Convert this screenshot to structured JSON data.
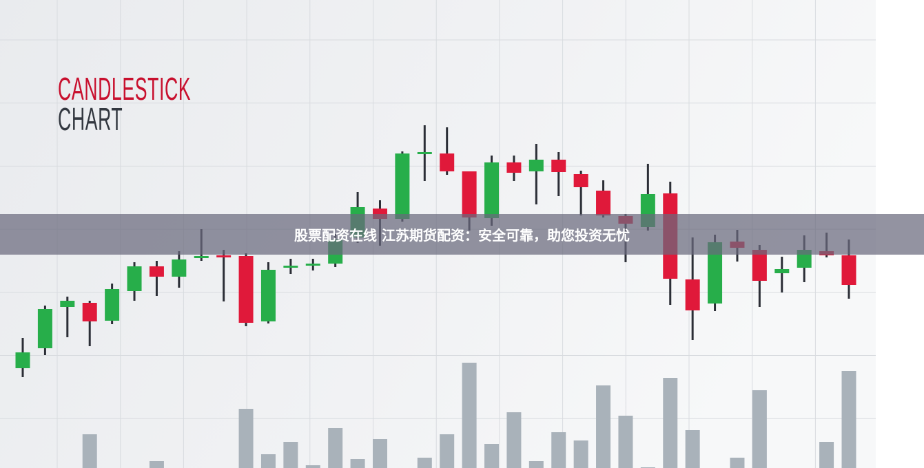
{
  "banner": {
    "text": "股票配资在线 江苏期货配资：安全可靠，助您投资无忧"
  },
  "chart_data": {
    "type": "candlestick",
    "title": [
      "CANDLESTICK",
      "CHART"
    ],
    "xlabel": "",
    "ylabel": "",
    "grid": true,
    "legend": "none",
    "colors": {
      "up": "#27ae4a",
      "down": "#e0193a",
      "wick": "#2b2e36",
      "volume": "#a9b2ba",
      "title_red": "#c8102e",
      "title_dark": "#333840"
    },
    "candles": [
      {
        "o": 65,
        "c": 88,
        "h": 109,
        "l": 52
      },
      {
        "o": 94,
        "c": 151,
        "h": 156,
        "l": 84
      },
      {
        "o": 154,
        "c": 163,
        "h": 169,
        "l": 110
      },
      {
        "o": 160,
        "c": 133,
        "h": 163,
        "l": 97
      },
      {
        "o": 134,
        "c": 180,
        "h": 188,
        "l": 129
      },
      {
        "o": 177,
        "c": 213,
        "h": 219,
        "l": 163
      },
      {
        "o": 213,
        "c": 198,
        "h": 221,
        "l": 170
      },
      {
        "o": 198,
        "c": 223,
        "h": 235,
        "l": 182
      },
      {
        "o": 226,
        "c": 228,
        "h": 267,
        "l": 221
      },
      {
        "o": 229,
        "c": 227,
        "h": 237,
        "l": 162
      },
      {
        "o": 228,
        "c": 131,
        "h": 232,
        "l": 126
      },
      {
        "o": 133,
        "c": 208,
        "h": 219,
        "l": 130
      },
      {
        "o": 212,
        "c": 214,
        "h": 224,
        "l": 202
      },
      {
        "o": 215,
        "c": 217,
        "h": 224,
        "l": 207
      },
      {
        "o": 217,
        "c": 252,
        "h": 260,
        "l": 212
      },
      {
        "o": 255,
        "c": 299,
        "h": 321,
        "l": 247
      },
      {
        "o": 297,
        "c": 282,
        "h": 309,
        "l": 243
      },
      {
        "o": 282,
        "c": 377,
        "h": 380,
        "l": 278
      },
      {
        "o": 376,
        "c": 379,
        "h": 418,
        "l": 337
      },
      {
        "o": 377,
        "c": 351,
        "h": 415,
        "l": 346
      },
      {
        "o": 351,
        "c": 284,
        "h": 351,
        "l": 265
      },
      {
        "o": 283,
        "c": 364,
        "h": 374,
        "l": 272
      },
      {
        "o": 364,
        "c": 349,
        "h": 374,
        "l": 337
      },
      {
        "o": 351,
        "c": 368,
        "h": 391,
        "l": 303
      },
      {
        "o": 368,
        "c": 350,
        "h": 379,
        "l": 315
      },
      {
        "o": 347,
        "c": 328,
        "h": 352,
        "l": 287
      },
      {
        "o": 323,
        "c": 287,
        "h": 338,
        "l": 284
      },
      {
        "o": 286,
        "c": 275,
        "h": 289,
        "l": 219
      },
      {
        "o": 270,
        "c": 318,
        "h": 362,
        "l": 265
      },
      {
        "o": 319,
        "c": 195,
        "h": 336,
        "l": 157
      },
      {
        "o": 194,
        "c": 149,
        "h": 255,
        "l": 106
      },
      {
        "o": 159,
        "c": 248,
        "h": 259,
        "l": 148
      },
      {
        "o": 249,
        "c": 240,
        "h": 266,
        "l": 220
      },
      {
        "o": 237,
        "c": 192,
        "h": 244,
        "l": 154
      },
      {
        "o": 203,
        "c": 209,
        "h": 227,
        "l": 175
      },
      {
        "o": 211,
        "c": 237,
        "h": 258,
        "l": 190
      },
      {
        "o": 235,
        "c": 229,
        "h": 262,
        "l": 226
      },
      {
        "o": 229,
        "c": 186,
        "h": 252,
        "l": 166
      }
    ],
    "volume": [
      0,
      0,
      0,
      49,
      0,
      0,
      10,
      0,
      0,
      0,
      86,
      20,
      38,
      4,
      58,
      13,
      42,
      0,
      15,
      49,
      153,
      35,
      81,
      10,
      52,
      40,
      120,
      76,
      1,
      131,
      55,
      0,
      15,
      113,
      0,
      0,
      38,
      141
    ]
  }
}
